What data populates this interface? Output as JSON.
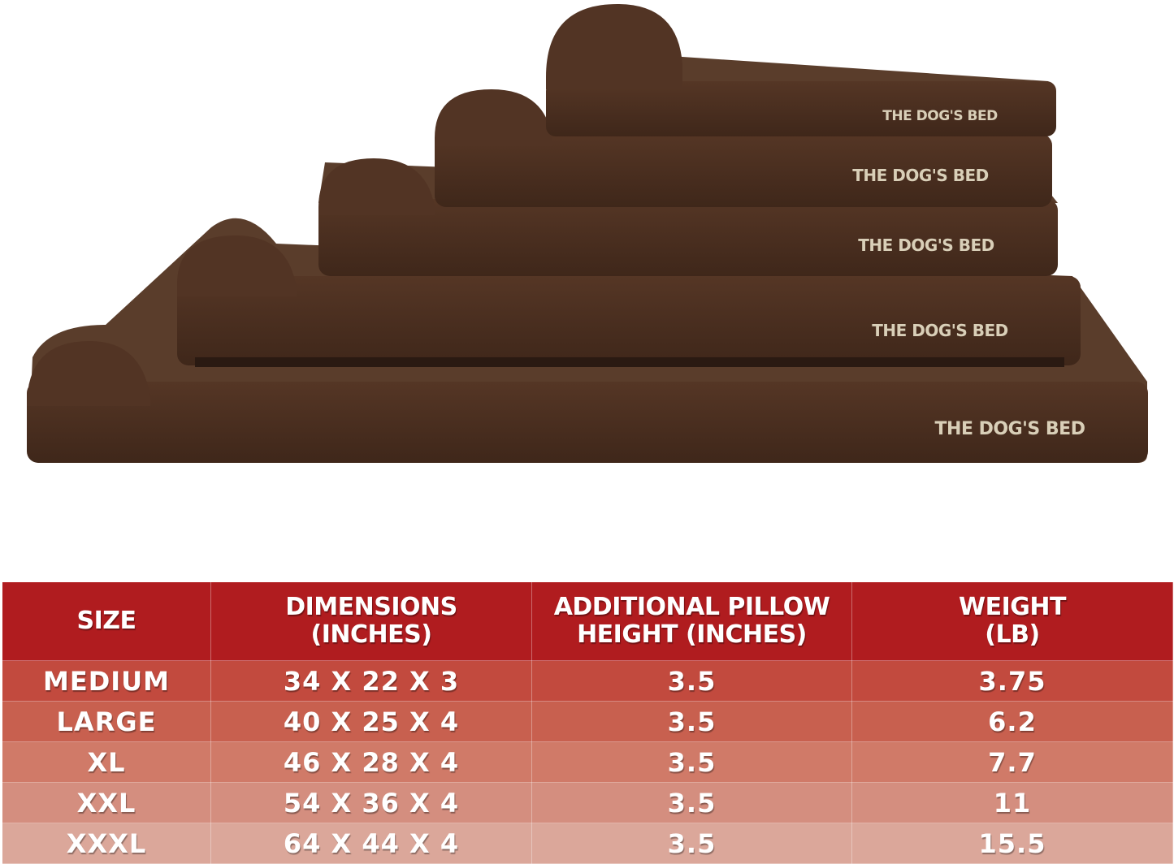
{
  "product_image": {
    "brand_label": "THE DOG'S BED",
    "bed_color": "#4a2f20",
    "sherpa_color": "#5a3d2b",
    "beds": [
      "MEDIUM",
      "LARGE",
      "XL",
      "XXL",
      "XXXL"
    ]
  },
  "size_table": {
    "header_color": "#b01c1f",
    "headers": [
      "SIZE",
      "DIMENSIONS (INCHES)",
      "ADDITIONAL PILLOW HEIGHT (INCHES)",
      "WEIGHT (LB)"
    ],
    "rows": [
      [
        "MEDIUM",
        "34 X 22 X 3",
        "3.5",
        "3.75"
      ],
      [
        "LARGE",
        "40 X 25 X 4",
        "3.5",
        "6.2"
      ],
      [
        "XL",
        "46 X 28 X 4",
        "3.5",
        "7.7"
      ],
      [
        "XXL",
        "54 X 36 X 4",
        "3.5",
        "11"
      ],
      [
        "XXXL",
        "64 X 44 X 4",
        "3.5",
        "15.5"
      ]
    ]
  }
}
